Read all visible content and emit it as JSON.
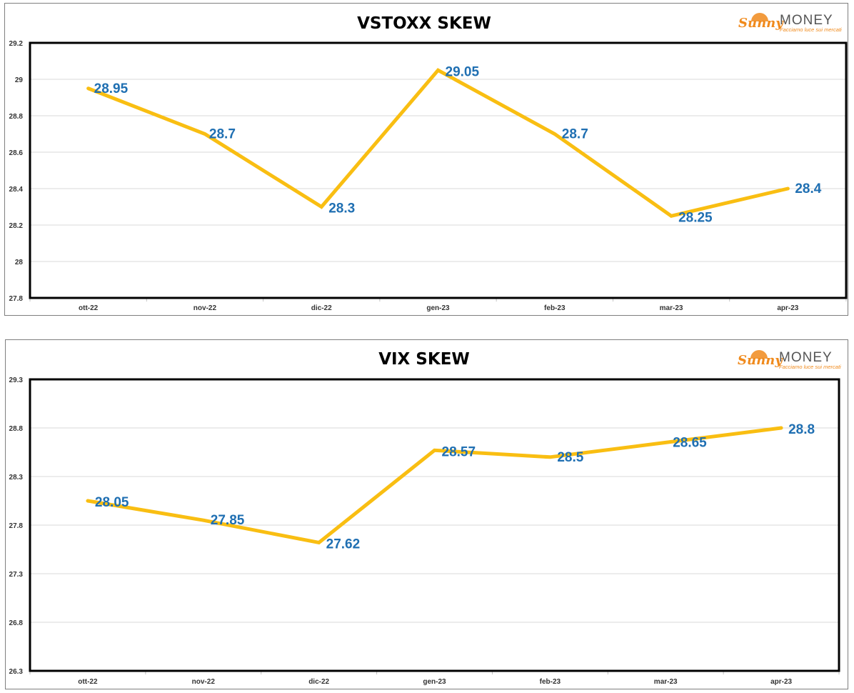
{
  "logo": {
    "brand_script": "Sunny",
    "brand_word": "MONEY",
    "tagline": "Facciamo luce sui mercati"
  },
  "colors": {
    "line": "#F9BE12",
    "label": "#1F6FB2",
    "grid": "#D9D9D9",
    "frame": "#000000",
    "logo_orange": "#F08A1C",
    "logo_gray": "#555555"
  },
  "chart_data": [
    {
      "type": "line",
      "title": "VSTOXX SKEW",
      "categories": [
        "ott-22",
        "nov-22",
        "dic-22",
        "gen-23",
        "feb-23",
        "mar-23",
        "apr-23"
      ],
      "values": [
        28.95,
        28.7,
        28.3,
        29.05,
        28.7,
        28.25,
        28.4
      ],
      "data_labels": [
        "28.95",
        "28.7",
        "28.3",
        "29.05",
        "28.7",
        "28.25",
        "28.4"
      ],
      "yticks": [
        "27.8",
        "28",
        "28.2",
        "28.4",
        "28.6",
        "28.8",
        "29",
        "29.2"
      ],
      "ylim": [
        27.8,
        29.2
      ],
      "grid": true,
      "legend": "none"
    },
    {
      "type": "line",
      "title": "VIX SKEW",
      "categories": [
        "ott-22",
        "nov-22",
        "dic-22",
        "gen-23",
        "feb-23",
        "mar-23",
        "apr-23"
      ],
      "values": [
        28.05,
        27.85,
        27.62,
        28.57,
        28.5,
        28.65,
        28.8
      ],
      "data_labels": [
        "28.05",
        "27.85",
        "27.62",
        "28.57",
        "28.5",
        "28.65",
        "28.8"
      ],
      "yticks": [
        "26.3",
        "26.8",
        "27.3",
        "27.8",
        "28.3",
        "28.8",
        "29.3"
      ],
      "ylim": [
        26.3,
        29.3
      ],
      "grid": true,
      "legend": "none"
    }
  ]
}
